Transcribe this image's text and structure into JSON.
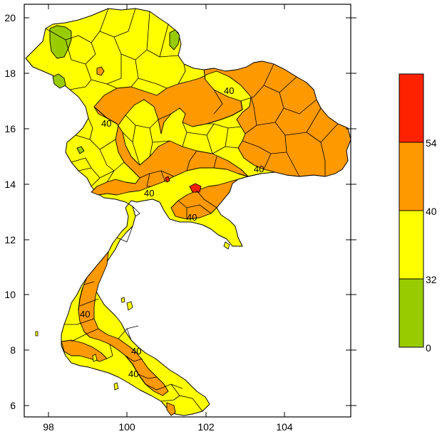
{
  "map": {
    "x_ticks": [
      "98",
      "100",
      "102",
      "104"
    ],
    "y_ticks": [
      "6",
      "8",
      "10",
      "12",
      "14",
      "16",
      "18",
      "20"
    ],
    "contour_labels": [
      "40",
      "40",
      "40",
      "40",
      "40",
      "40",
      "40",
      "40"
    ]
  },
  "legend": {
    "labels": [
      "0",
      "32",
      "40",
      "54"
    ],
    "colors": {
      "band_0_32": "#99cc00",
      "band_32_40": "#ffff00",
      "band_40_54": "#ff9900",
      "band_54_up": "#ff2200"
    }
  }
}
